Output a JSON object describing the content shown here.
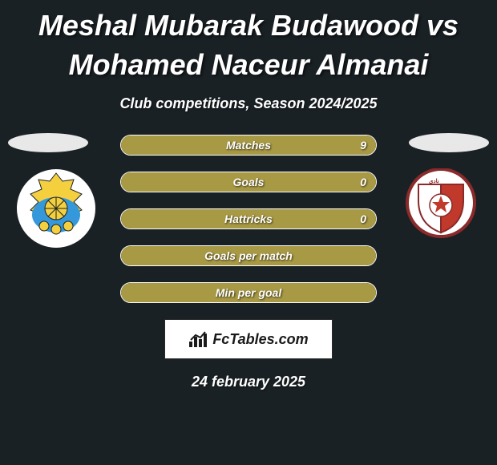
{
  "title": "Meshal Mubarak Budawood vs Mohamed Naceur Almanai",
  "subtitle": "Club competitions, Season 2024/2025",
  "bars": [
    {
      "label": "Matches",
      "value": "9",
      "fill_pct": 100
    },
    {
      "label": "Goals",
      "value": "0",
      "fill_pct": 100
    },
    {
      "label": "Hattricks",
      "value": "0",
      "fill_pct": 100
    },
    {
      "label": "Goals per match",
      "value": "",
      "fill_pct": 100
    },
    {
      "label": "Min per goal",
      "value": "",
      "fill_pct": 100
    }
  ],
  "logo": {
    "text": "FcTables.com"
  },
  "date": "24 february 2025",
  "colors": {
    "bg": "#1a2125",
    "bar_fill": "#a89944",
    "bar_border": "#ffffff",
    "ellipse": "#e8e8e8"
  },
  "left_badge": {
    "outer_bg": "#ffffff",
    "shield_top": "#f4d03f",
    "shield_body": "#3498db",
    "ball": "#f4d03f"
  },
  "right_badge": {
    "outer_ring": "#ffffff",
    "shield_left": "#ffffff",
    "shield_right": "#c0392b",
    "ball": "#ffffff"
  }
}
